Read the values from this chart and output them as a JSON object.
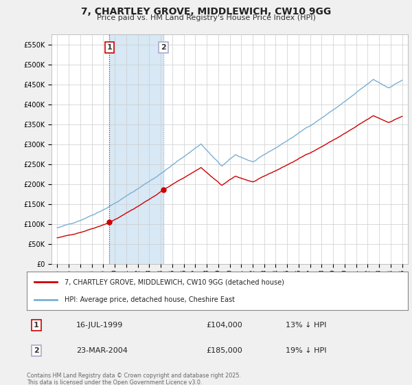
{
  "title": "7, CHARTLEY GROVE, MIDDLEWICH, CW10 9GG",
  "subtitle": "Price paid vs. HM Land Registry's House Price Index (HPI)",
  "legend_label_red": "7, CHARTLEY GROVE, MIDDLEWICH, CW10 9GG (detached house)",
  "legend_label_blue": "HPI: Average price, detached house, Cheshire East",
  "footer": "Contains HM Land Registry data © Crown copyright and database right 2025.\nThis data is licensed under the Open Government Licence v3.0.",
  "ylim": [
    0,
    575000
  ],
  "yticks": [
    0,
    50000,
    100000,
    150000,
    200000,
    250000,
    300000,
    350000,
    400000,
    450000,
    500000,
    550000
  ],
  "ytick_labels": [
    "£0",
    "£50K",
    "£100K",
    "£150K",
    "£200K",
    "£250K",
    "£300K",
    "£350K",
    "£400K",
    "£450K",
    "£500K",
    "£550K"
  ],
  "transaction1_x": 1999.54,
  "transaction1_y": 104000,
  "transaction2_x": 2004.23,
  "transaction2_y": 185000,
  "annotation1_date": "16-JUL-1999",
  "annotation1_price": "£104,000",
  "annotation1_hpi": "13% ↓ HPI",
  "annotation2_date": "23-MAR-2004",
  "annotation2_price": "£185,000",
  "annotation2_hpi": "19% ↓ HPI",
  "red_color": "#cc0000",
  "blue_color": "#7aafd4",
  "shade_color": "#d8e8f5",
  "vline_color": "#cc0000",
  "background_color": "#f0f0f0",
  "plot_bg_color": "#ffffff",
  "grid_color": "#cccccc",
  "xtick_years": [
    1995,
    1996,
    1997,
    1998,
    1999,
    2000,
    2001,
    2002,
    2003,
    2004,
    2005,
    2006,
    2007,
    2008,
    2009,
    2010,
    2011,
    2012,
    2013,
    2014,
    2015,
    2016,
    2017,
    2018,
    2019,
    2020,
    2021,
    2022,
    2023,
    2024,
    2025
  ]
}
